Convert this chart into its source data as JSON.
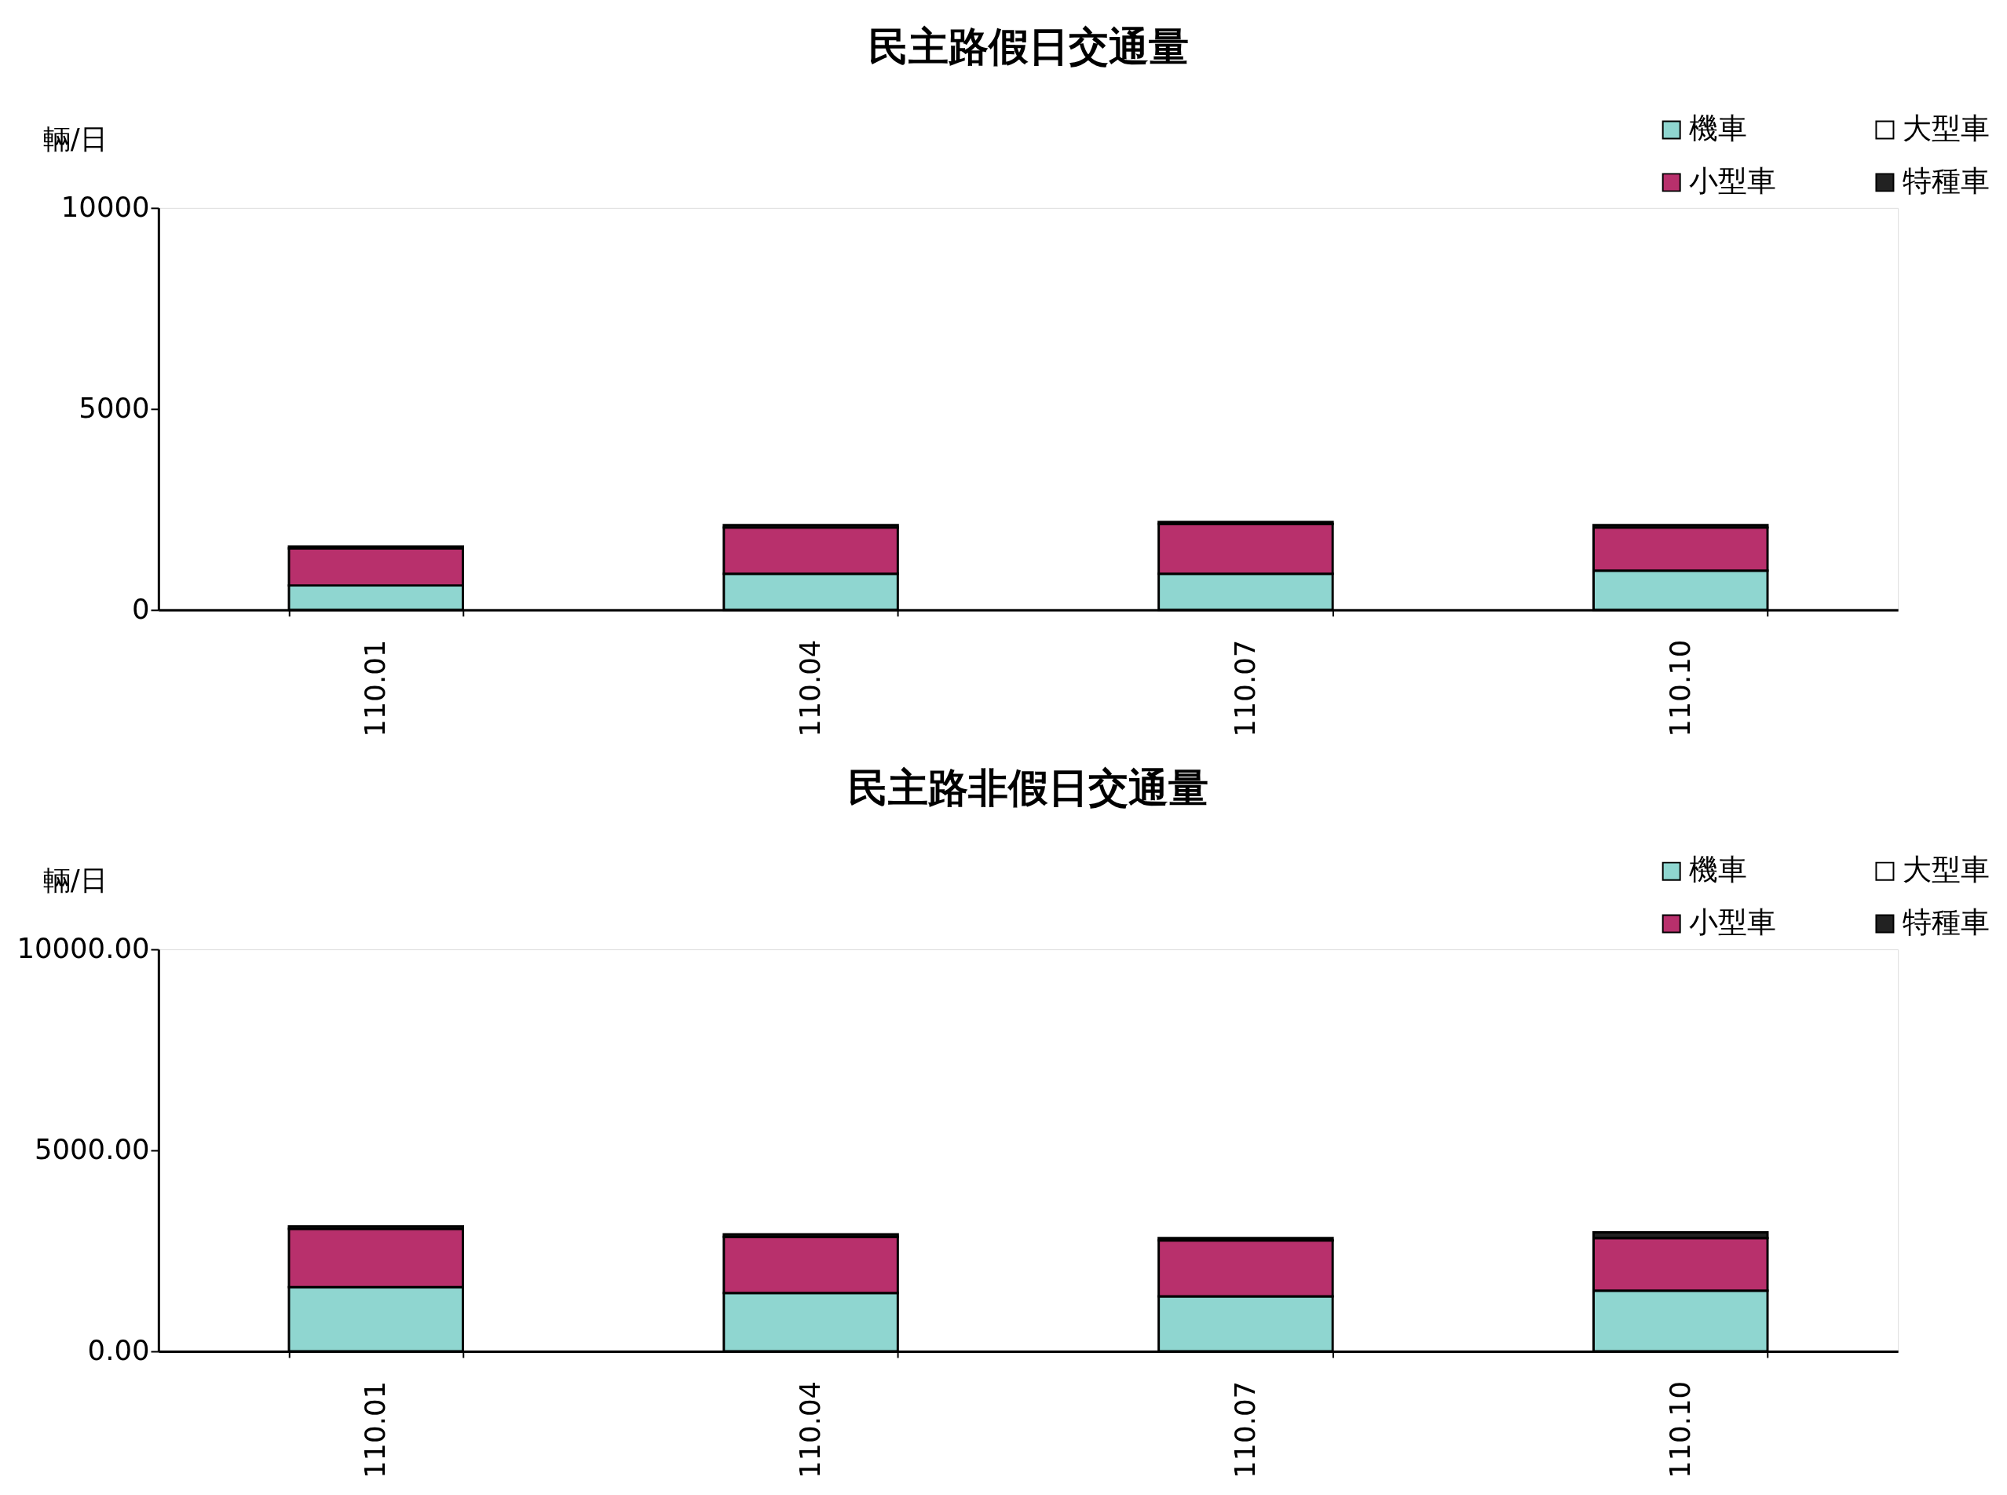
{
  "chart_data": [
    {
      "type": "bar",
      "stacked": true,
      "title": "民主路假日交通量",
      "ylabel": "輛/日",
      "categories": [
        "110.01",
        "110.04",
        "110.07",
        "110.10"
      ],
      "series": [
        {
          "name": "機車",
          "color": "#8fd6d0",
          "values": [
            610,
            900,
            900,
            980
          ]
        },
        {
          "name": "小型車",
          "color": "#b8306c",
          "values": [
            920,
            1150,
            1240,
            1070
          ]
        },
        {
          "name": "大型車",
          "color": "#ffffff",
          "values": [
            null,
            null,
            null,
            null
          ]
        },
        {
          "name": "特種車",
          "color": "#222222",
          "values": [
            50,
            60,
            50,
            60
          ]
        }
      ],
      "ylim": [
        0,
        10000
      ],
      "yticks": [
        0,
        5000,
        10000
      ],
      "grid": false,
      "legend": "top right"
    },
    {
      "type": "bar",
      "stacked": true,
      "title": "民主路非假日交通量",
      "ylabel": "輛/日",
      "categories": [
        "110.01",
        "110.04",
        "110.07",
        "110.10"
      ],
      "series": [
        {
          "name": "機車",
          "color": "#8fd6d0",
          "values": [
            1600,
            1450,
            1370,
            1510
          ]
        },
        {
          "name": "小型車",
          "color": "#b8306c",
          "values": [
            1450,
            1400,
            1390,
            1310
          ]
        },
        {
          "name": "大型車",
          "color": "#ffffff",
          "values": [
            null,
            null,
            null,
            null
          ]
        },
        {
          "name": "特種車",
          "color": "#222222",
          "values": [
            60,
            60,
            60,
            140
          ]
        }
      ],
      "ylim": [
        0,
        10000
      ],
      "yticks": [
        {
          "value": 0,
          "label": "0.00"
        },
        {
          "value": 5000,
          "label": "5000.00"
        },
        {
          "value": 10000,
          "label": "10000.00"
        }
      ],
      "grid": false,
      "legend": "top right"
    }
  ]
}
